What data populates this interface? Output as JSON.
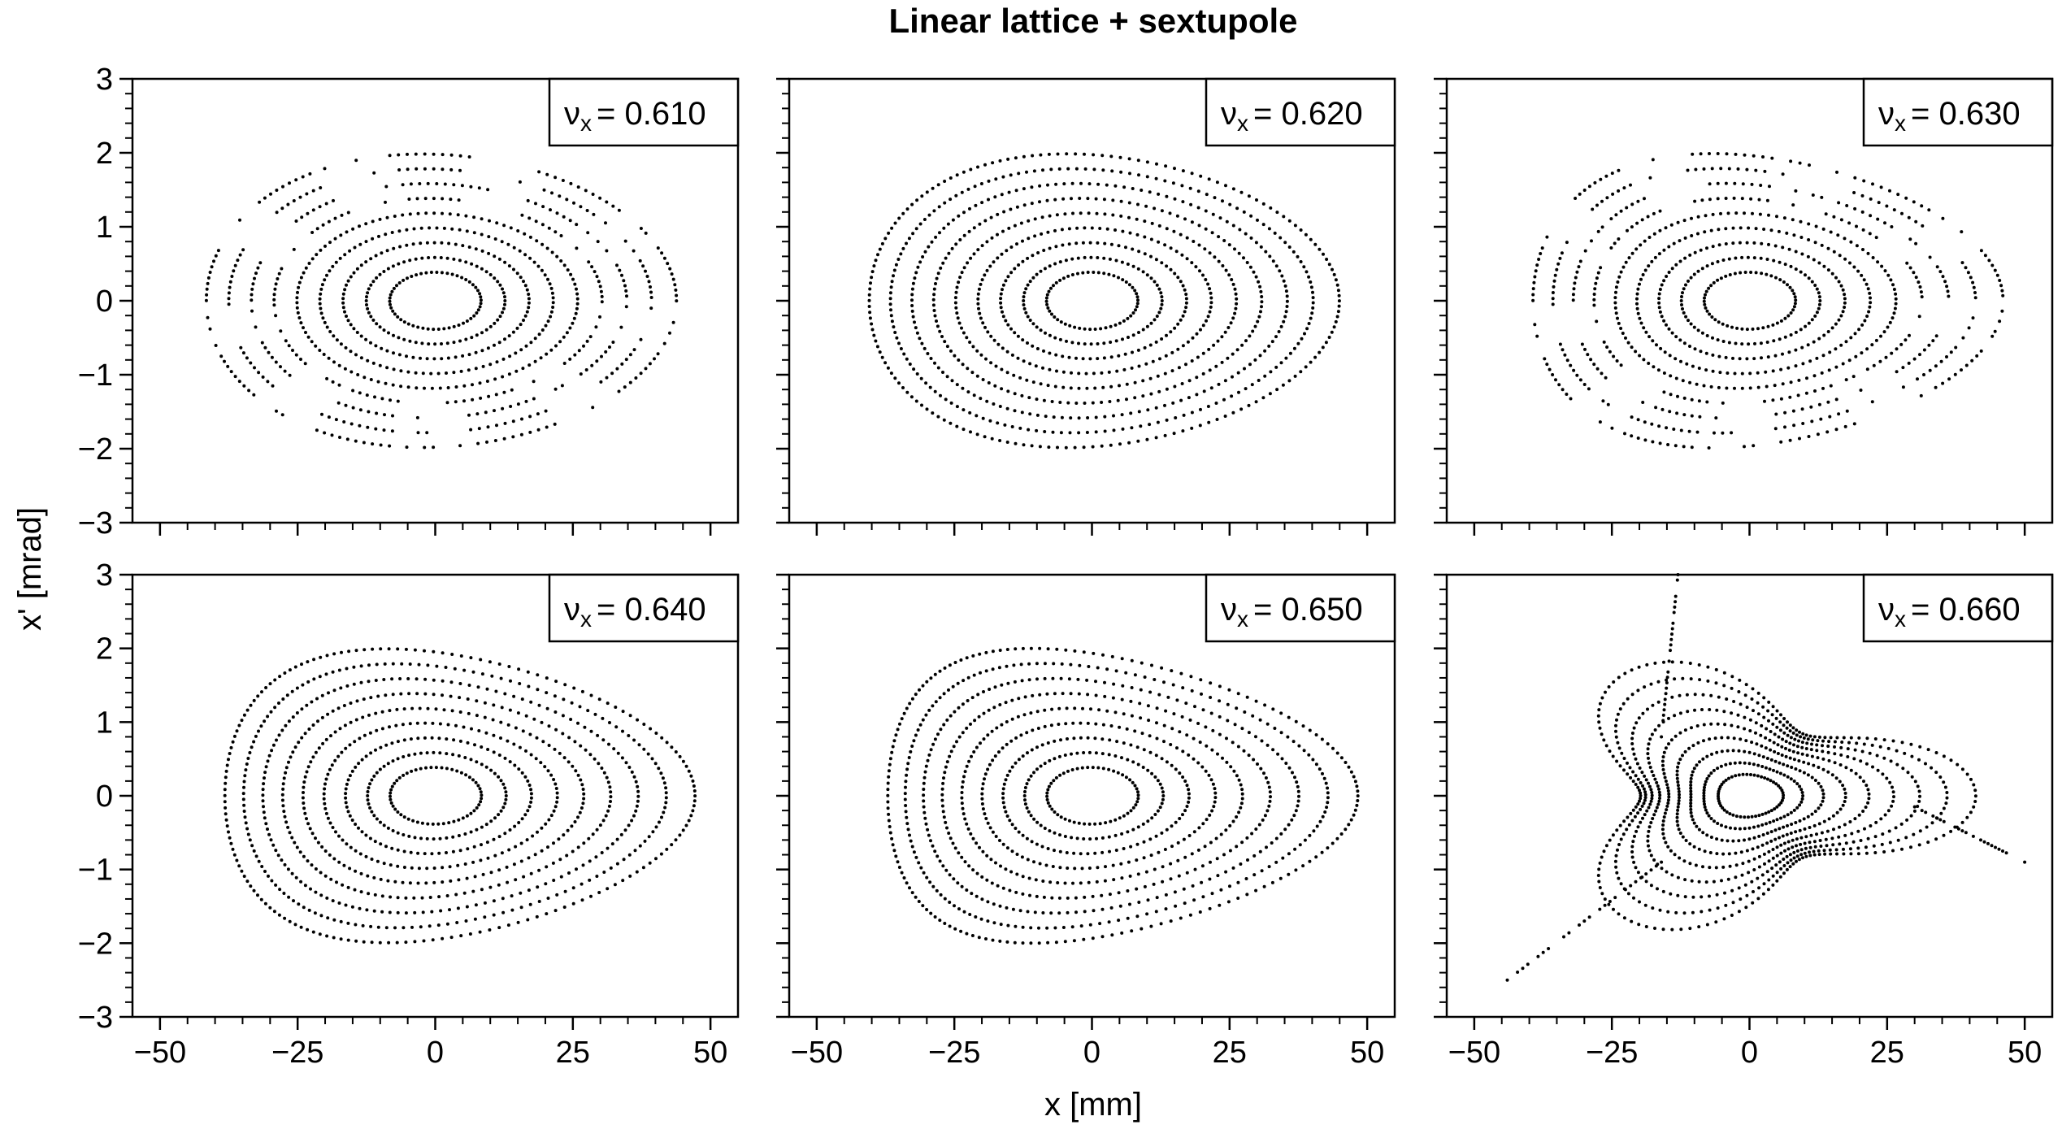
{
  "figure": {
    "title": "Linear lattice + sextupole",
    "xlabel": "x [mm]",
    "ylabel": "x' [mrad]"
  },
  "chart_data": [
    {
      "type": "scatter",
      "panel": 1,
      "legend": "νx = 0.610",
      "nu": "ν",
      "sub": "x",
      "eq_value": "= 0.610",
      "nu_value": 0.61,
      "xlim": [
        -55,
        55
      ],
      "ylim": [
        -3,
        3
      ],
      "legend_position": "top-right",
      "marker": "dots",
      "pattern": "concentric elliptical tori; outer orbits split into islands"
    },
    {
      "type": "scatter",
      "panel": 2,
      "legend": "νx = 0.620",
      "nu": "ν",
      "sub": "x",
      "eq_value": "= 0.620",
      "nu_value": 0.62,
      "xlim": [
        -55,
        55
      ],
      "ylim": [
        -3,
        3
      ],
      "legend_position": "top-right",
      "marker": "dots",
      "pattern": "concentric tori, slightly triangular outer orbits"
    },
    {
      "type": "scatter",
      "panel": 3,
      "legend": "νx = 0.630",
      "nu": "ν",
      "sub": "x",
      "eq_value": "= 0.630",
      "nu_value": 0.63,
      "xlim": [
        -55,
        55
      ],
      "ylim": [
        -3,
        3
      ],
      "legend_position": "top-right",
      "marker": "dots",
      "pattern": "concentric tori; outer orbits split into islands"
    },
    {
      "type": "scatter",
      "panel": 4,
      "legend": "νx = 0.640",
      "nu": "ν",
      "sub": "x",
      "eq_value": "= 0.640",
      "nu_value": 0.64,
      "xlim": [
        -55,
        55
      ],
      "ylim": [
        -3,
        3
      ],
      "legend_position": "top-right",
      "marker": "dots",
      "pattern": "triangular distortion of outer tori"
    },
    {
      "type": "scatter",
      "panel": 5,
      "legend": "νx = 0.650",
      "nu": "ν",
      "sub": "x",
      "eq_value": "= 0.650",
      "nu_value": 0.65,
      "xlim": [
        -55,
        55
      ],
      "ylim": [
        -3,
        3
      ],
      "legend_position": "top-right",
      "marker": "dots",
      "pattern": "strong triangular distortion"
    },
    {
      "type": "scatter",
      "panel": 6,
      "legend": "νx = 0.660",
      "nu": "ν",
      "sub": "x",
      "eq_value": "= 0.660",
      "nu_value": 0.66,
      "xlim": [
        -55,
        55
      ],
      "ylim": [
        -3,
        3
      ],
      "legend_position": "top-right",
      "marker": "dots",
      "pattern": "third-order resonance triangle separatrix with escaping arms"
    }
  ],
  "axes": {
    "x_ticks": [
      -50,
      -25,
      0,
      25,
      50
    ],
    "y_ticks": [
      -3,
      -2,
      -1,
      0,
      1,
      2,
      3
    ],
    "x_tick_labels": [
      "−50",
      "−25",
      "0",
      "25",
      "50"
    ],
    "y_tick_labels": [
      "−3",
      "−2",
      "−1",
      "0",
      "1",
      "2",
      "3"
    ]
  }
}
